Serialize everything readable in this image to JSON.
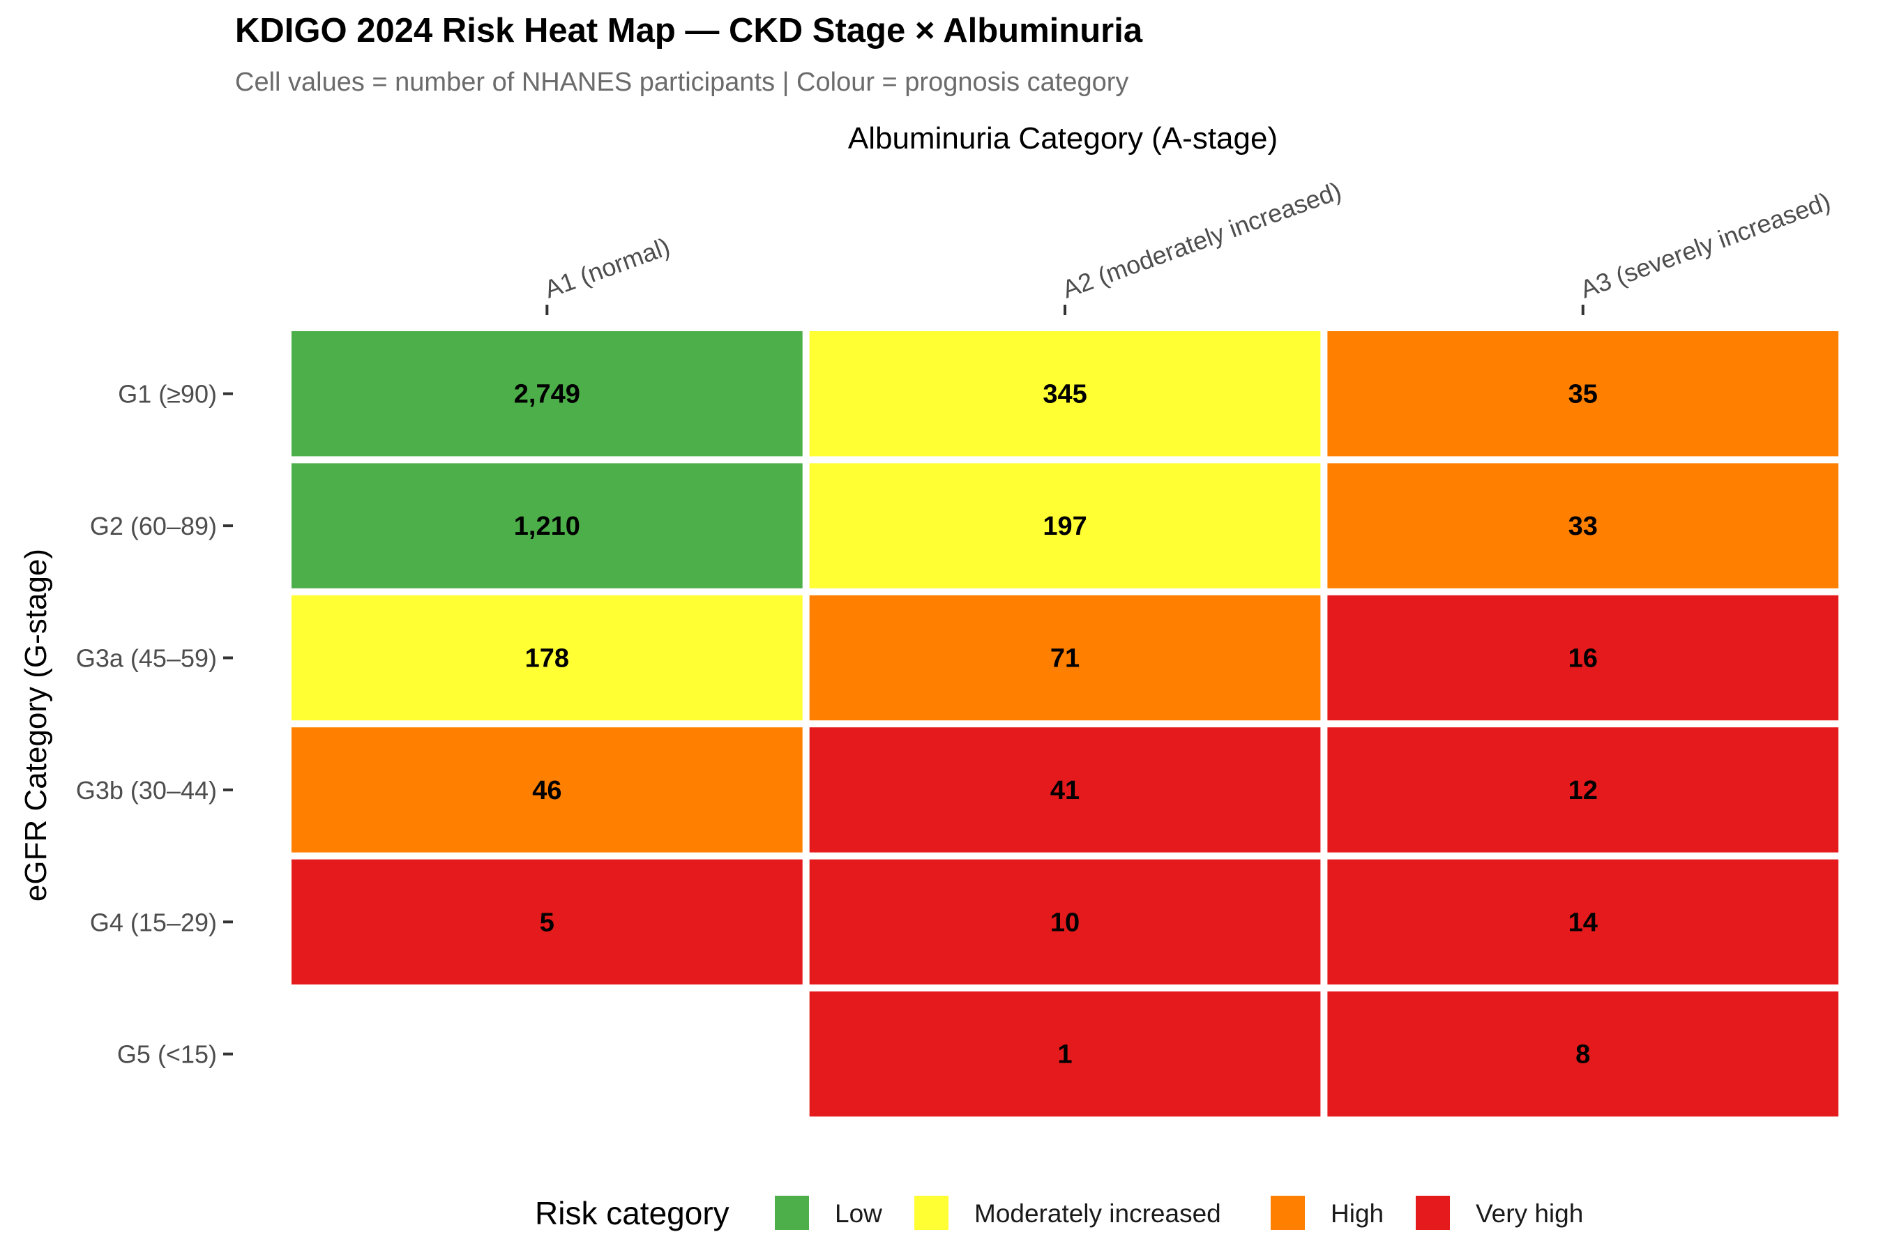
{
  "chart_data": {
    "type": "heatmap",
    "title": "KDIGO 2024 Risk Heat Map — CKD Stage × Albuminuria",
    "subtitle": "Cell values = number of NHANES participants | Colour = prognosis category",
    "xlabel": "Albuminuria Category (A-stage)",
    "ylabel": "eGFR Category (G-stage)",
    "x_categories": [
      "A1 (normal)",
      "A2 (moderately increased)",
      "A3 (severely increased)"
    ],
    "y_categories": [
      "G1 (≥90)",
      "G2 (60–89)",
      "G3a (45–59)",
      "G3b (30–44)",
      "G4 (15–29)",
      "G5 (<15)"
    ],
    "cells": [
      {
        "g": "G1 (≥90)",
        "a": "A1 (normal)",
        "value": 2749,
        "label": "2,749",
        "risk": "Low"
      },
      {
        "g": "G1 (≥90)",
        "a": "A2 (moderately increased)",
        "value": 345,
        "label": "345",
        "risk": "Moderately increased"
      },
      {
        "g": "G1 (≥90)",
        "a": "A3 (severely increased)",
        "value": 35,
        "label": "35",
        "risk": "High"
      },
      {
        "g": "G2 (60–89)",
        "a": "A1 (normal)",
        "value": 1210,
        "label": "1,210",
        "risk": "Low"
      },
      {
        "g": "G2 (60–89)",
        "a": "A2 (moderately increased)",
        "value": 197,
        "label": "197",
        "risk": "Moderately increased"
      },
      {
        "g": "G2 (60–89)",
        "a": "A3 (severely increased)",
        "value": 33,
        "label": "33",
        "risk": "High"
      },
      {
        "g": "G3a (45–59)",
        "a": "A1 (normal)",
        "value": 178,
        "label": "178",
        "risk": "Moderately increased"
      },
      {
        "g": "G3a (45–59)",
        "a": "A2 (moderately increased)",
        "value": 71,
        "label": "71",
        "risk": "High"
      },
      {
        "g": "G3a (45–59)",
        "a": "A3 (severely increased)",
        "value": 16,
        "label": "16",
        "risk": "Very high"
      },
      {
        "g": "G3b (30–44)",
        "a": "A1 (normal)",
        "value": 46,
        "label": "46",
        "risk": "High"
      },
      {
        "g": "G3b (30–44)",
        "a": "A2 (moderately increased)",
        "value": 41,
        "label": "41",
        "risk": "Very high"
      },
      {
        "g": "G3b (30–44)",
        "a": "A3 (severely increased)",
        "value": 12,
        "label": "12",
        "risk": "Very high"
      },
      {
        "g": "G4 (15–29)",
        "a": "A1 (normal)",
        "value": 5,
        "label": "5",
        "risk": "Very high"
      },
      {
        "g": "G4 (15–29)",
        "a": "A2 (moderately increased)",
        "value": 10,
        "label": "10",
        "risk": "Very high"
      },
      {
        "g": "G4 (15–29)",
        "a": "A3 (severely increased)",
        "value": 14,
        "label": "14",
        "risk": "Very high"
      },
      {
        "g": "G5 (<15)",
        "a": "A2 (moderately increased)",
        "value": 1,
        "label": "1",
        "risk": "Very high"
      },
      {
        "g": "G5 (<15)",
        "a": "A3 (severely increased)",
        "value": 8,
        "label": "8",
        "risk": "Very high"
      }
    ],
    "legend": {
      "title": "Risk category",
      "position": "bottom",
      "items": [
        {
          "label": "Low",
          "color": "#4daf4a"
        },
        {
          "label": "Moderately increased",
          "color": "#ffff33"
        },
        {
          "label": "High",
          "color": "#ff7f00"
        },
        {
          "label": "Very high",
          "color": "#e41a1c"
        }
      ]
    },
    "grid": false
  }
}
